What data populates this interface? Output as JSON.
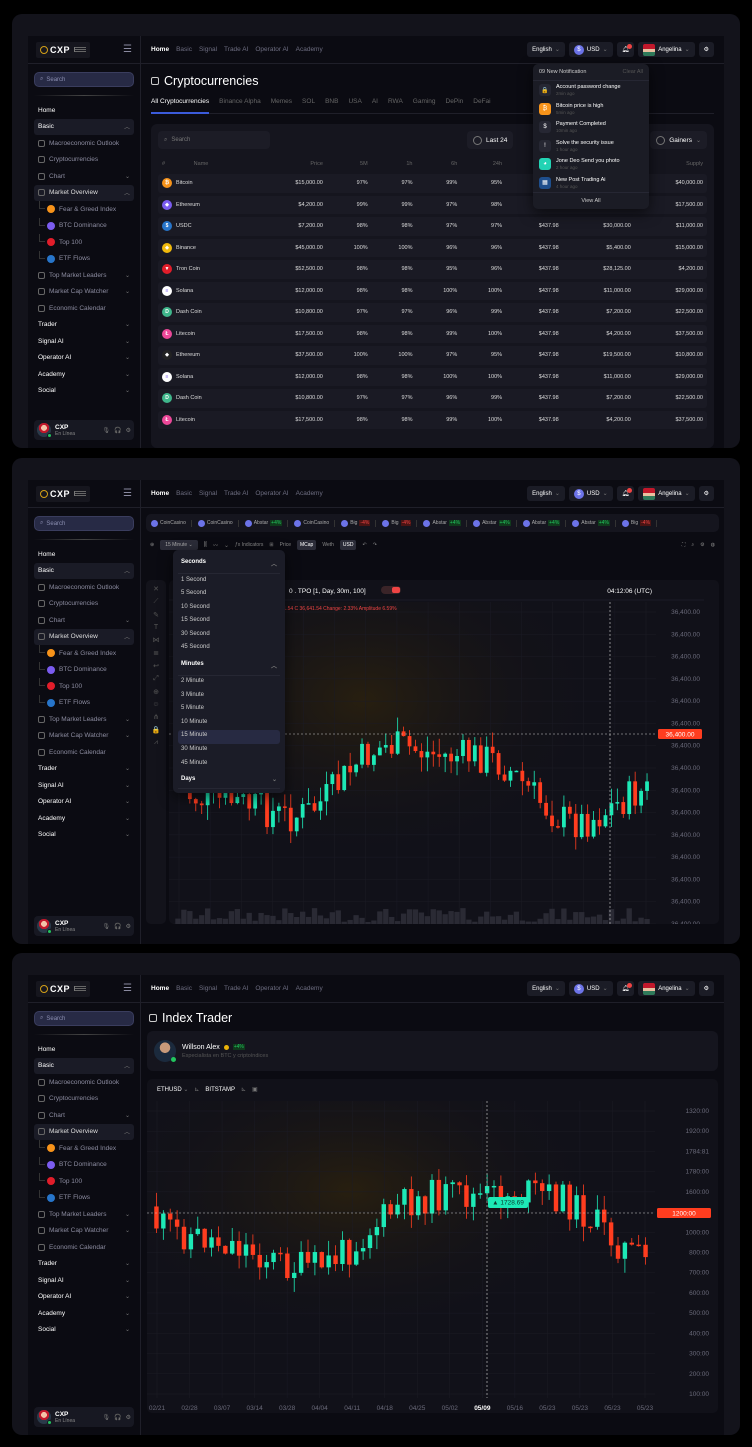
{
  "brand": {
    "name": "CXP"
  },
  "topnav": [
    "Home",
    "Basic",
    "Signal",
    "Trade AI",
    "Operator AI",
    "Academy"
  ],
  "header": {
    "language": "English",
    "currency": "USD",
    "user": "Angelina"
  },
  "search": {
    "placeholder": "Search"
  },
  "sidebar": {
    "items": [
      {
        "label": "Home",
        "type": "top"
      },
      {
        "label": "Basic",
        "type": "group",
        "open": true
      },
      {
        "label": "Macroeconomic Outlook",
        "type": "sub"
      },
      {
        "label": "Cryptocurrencies",
        "type": "sub"
      },
      {
        "label": "Chart",
        "type": "sub",
        "chev": true
      },
      {
        "label": "Market Overview",
        "type": "sub-active",
        "open": true
      },
      {
        "label": "Fear & Greed Index",
        "type": "child",
        "color": "#f7931a"
      },
      {
        "label": "BTC Dominance",
        "type": "child",
        "color": "#7b5cf0"
      },
      {
        "label": "Top 100",
        "type": "child",
        "color": "#e11d2a"
      },
      {
        "label": "ETF Flows",
        "type": "child",
        "color": "#2775ca"
      },
      {
        "label": "Top Market Leaders",
        "type": "sub",
        "chev": true
      },
      {
        "label": "Market Cap Watcher",
        "type": "sub",
        "chev": true
      },
      {
        "label": "Economic Calendar",
        "type": "sub"
      },
      {
        "label": "Trader",
        "type": "top",
        "chev": true
      },
      {
        "label": "Signal AI",
        "type": "top",
        "chev": true
      },
      {
        "label": "Operator AI",
        "type": "top",
        "chev": true
      },
      {
        "label": "Academy",
        "type": "top",
        "chev": true
      },
      {
        "label": "Social",
        "type": "top",
        "chev": true
      }
    ],
    "user": {
      "name": "CXP",
      "status": "En Línea"
    }
  },
  "crypto": {
    "title": "Cryptocurrencies",
    "tabs": [
      "All Cryptocurrencies",
      "Binance Alpha",
      "Memes",
      "SOL",
      "BNB",
      "USA",
      "AI",
      "RWA",
      "Gaming",
      "DePin",
      "DeFai"
    ],
    "search_placeholder": "Search",
    "filters": {
      "period": "Last 24",
      "sort": "Gainers"
    },
    "columns": [
      "#",
      "Name",
      "Price",
      "5M",
      "1h",
      "6h",
      "24h",
      "",
      "",
      "Supply"
    ],
    "rows": [
      {
        "name": "Bitcoin",
        "color": "#f7931a",
        "glyph": "₿",
        "price": "$15,000.00",
        "m5": "97%",
        "h1": "97%",
        "h6": "99%",
        "h24": "95%",
        "vol": "",
        "cap": "",
        "supply": "$40,000.00"
      },
      {
        "name": "Ethereum",
        "color": "#7b5cf0",
        "glyph": "◆",
        "price": "$4,200.00",
        "m5": "99%",
        "h1": "99%",
        "h6": "97%",
        "h24": "98%",
        "vol": "",
        "cap": "",
        "supply": "$17,500.00"
      },
      {
        "name": "USDC",
        "color": "#2775ca",
        "glyph": "$",
        "price": "$7,200.00",
        "m5": "98%",
        "h1": "98%",
        "h6": "97%",
        "h24": "97%",
        "vol": "$437.98",
        "cap": "$30,000.00",
        "supply": "$11,000.00"
      },
      {
        "name": "Binance",
        "color": "#f0b90b",
        "glyph": "◈",
        "price": "$45,000.00",
        "m5": "100%",
        "h1": "100%",
        "h6": "96%",
        "h24": "96%",
        "vol": "$437.98",
        "cap": "$5,400.00",
        "supply": "$15,000.00"
      },
      {
        "name": "Tron Coin",
        "color": "#e11d2a",
        "glyph": "▼",
        "price": "$52,500.00",
        "m5": "98%",
        "h1": "98%",
        "h6": "95%",
        "h24": "96%",
        "vol": "$437.98",
        "cap": "$28,125.00",
        "supply": "$4,200.00"
      },
      {
        "name": "Solana",
        "color": "#ffffff",
        "glyph": "≡",
        "price": "$12,000.00",
        "m5": "98%",
        "h1": "98%",
        "h6": "100%",
        "h24": "100%",
        "vol": "$437.98",
        "cap": "$11,000.00",
        "supply": "$29,000.00"
      },
      {
        "name": "Dash Coin",
        "color": "#3fb68b",
        "glyph": "D",
        "price": "$10,800.00",
        "m5": "97%",
        "h1": "97%",
        "h6": "96%",
        "h24": "99%",
        "vol": "$437.98",
        "cap": "$7,200.00",
        "supply": "$22,500.00"
      },
      {
        "name": "Litecoin",
        "color": "#ec4899",
        "glyph": "Ł",
        "price": "$17,500.00",
        "m5": "98%",
        "h1": "98%",
        "h6": "99%",
        "h24": "100%",
        "vol": "$437.98",
        "cap": "$4,200.00",
        "supply": "$37,500.00"
      },
      {
        "name": "Ethereum",
        "color": "#222222",
        "glyph": "◆",
        "price": "$37,500.00",
        "m5": "100%",
        "h1": "100%",
        "h6": "97%",
        "h24": "95%",
        "vol": "$437.98",
        "cap": "$19,500.00",
        "supply": "$10,800.00"
      },
      {
        "name": "Solana",
        "color": "#ffffff",
        "glyph": "≡",
        "price": "$12,000.00",
        "m5": "98%",
        "h1": "98%",
        "h6": "100%",
        "h24": "100%",
        "vol": "$437.98",
        "cap": "$11,000.00",
        "supply": "$29,000.00"
      },
      {
        "name": "Dash Coin",
        "color": "#3fb68b",
        "glyph": "D",
        "price": "$10,800.00",
        "m5": "97%",
        "h1": "97%",
        "h6": "96%",
        "h24": "99%",
        "vol": "$437.98",
        "cap": "$7,200.00",
        "supply": "$22,500.00"
      },
      {
        "name": "Litecoin",
        "color": "#ec4899",
        "glyph": "Ł",
        "price": "$17,500.00",
        "m5": "98%",
        "h1": "98%",
        "h6": "99%",
        "h24": "100%",
        "vol": "$437.98",
        "cap": "$4,200.00",
        "supply": "$37,500.00"
      }
    ]
  },
  "notifications": {
    "header": "09 New Notification",
    "clear": "Clear All",
    "view_all": "View All",
    "items": [
      {
        "title": "Account password change",
        "time": "2min ago",
        "icon": "lock-icon",
        "bg": "#262733",
        "glyph": "🔒"
      },
      {
        "title": "Bitcoin price is high",
        "time": "5min ago",
        "icon": "bitcoin-icon",
        "bg": "#f7931a",
        "glyph": "₿"
      },
      {
        "title": "Payment Completed",
        "time": "10min ago",
        "icon": "usd-coin-icon",
        "bg": "#262733",
        "glyph": "$"
      },
      {
        "title": "Solve the security issue",
        "time": "1 hour ago",
        "icon": "alert-icon",
        "bg": "#262733",
        "glyph": "!"
      },
      {
        "title": "Jone Deo Send you photo",
        "time": "2 hour ago",
        "icon": "photo-icon",
        "bg": "#22d3b4",
        "glyph": "◕"
      },
      {
        "title": "New Post Trading Ai",
        "time": "4 hour ago",
        "icon": "post-icon",
        "bg": "#1e4e8c",
        "glyph": "▦"
      }
    ]
  },
  "ticker": [
    {
      "name": "CoinCasino",
      "chg": ""
    },
    {
      "name": "CoinCasino",
      "chg": ""
    },
    {
      "name": "Abstar",
      "chg": "+4%",
      "dir": "up"
    },
    {
      "name": "CoinCasino",
      "chg": ""
    },
    {
      "name": "Big",
      "chg": "-4%",
      "dir": "dn"
    },
    {
      "name": "Big",
      "chg": "-4%",
      "dir": "dn"
    },
    {
      "name": "Abstar",
      "chg": "+4%",
      "dir": "up"
    },
    {
      "name": "Abstar",
      "chg": "+4%",
      "dir": "up"
    },
    {
      "name": "Abstar",
      "chg": "+4%",
      "dir": "up"
    },
    {
      "name": "Abstar",
      "chg": "+4%",
      "dir": "up"
    },
    {
      "name": "Big",
      "chg": "-4%",
      "dir": "dn"
    }
  ],
  "chart_toolbar": {
    "interval": "15 Minute",
    "indicators": "Indicators",
    "price": "Price",
    "mcap": "MCap",
    "weth": "Weth",
    "usd": "USD"
  },
  "chart1": {
    "legend": "0 . TPO [1, Day, 30m, 100]",
    "time": "04:12:06 (UTC)",
    "ohlc": "11.54   C 36,641.54   Change: 2.33%   Amplitude 6.59%",
    "price_tag": "36,400.00",
    "y_labels": [
      "36,400.00",
      "36,400.00",
      "36,400.00",
      "36,400.00",
      "36,400.00",
      "36,400.00",
      "36,400.00",
      "36,400.00",
      "36,400.00",
      "36,400.00",
      "36,400.00",
      "36,400.00",
      "36,400.00",
      "36,400.00",
      "36,400.00"
    ],
    "x_labels": [
      "02/21",
      "02/28",
      "03/07",
      "03/14",
      "03/28",
      "04/04",
      "04/11",
      "04/18",
      "04/25",
      "05/02",
      "05/09",
      "05/16",
      "05/23",
      "05/23",
      "05/23",
      "05/23"
    ],
    "x_highlight": 13
  },
  "timeframe_menu": {
    "groups": [
      {
        "label": "Seconds",
        "open": true,
        "options": [
          "1 Second",
          "5 Second",
          "10 Second",
          "15 Second",
          "30 Second",
          "45 Second"
        ]
      },
      {
        "label": "Minutes",
        "open": true,
        "options": [
          "2 Minute",
          "3 Minute",
          "5 Minute",
          "10 Minute",
          "15 Minute",
          "30 Minute",
          "45 Minute"
        ]
      },
      {
        "label": "Days",
        "open": false,
        "options": []
      }
    ],
    "selected": "15 Minute"
  },
  "index_trader": {
    "title": "Index Trader",
    "trader": {
      "name": "Willson Alex",
      "change": "+4%",
      "desc": "Especialista en BTC  y criptoíndices"
    },
    "symbol": "ETHUSD",
    "exchange": "BITSTAMP",
    "crosshair_value": "1728.69",
    "price_tag": "1200:00",
    "y_labels": [
      "1320:00",
      "1920:00",
      "1784:81",
      "1780:00",
      "1600:00",
      "1200:00",
      "1000:00",
      "800:00",
      "700:00",
      "600:00",
      "500:00",
      "400:00",
      "300:00",
      "200:00",
      "100:00"
    ],
    "x_labels": [
      "02/21",
      "02/28",
      "03/07",
      "03/14",
      "03/28",
      "04/04",
      "04/11",
      "04/18",
      "04/25",
      "05/02",
      "05/09",
      "05/16",
      "05/23",
      "05/23",
      "05/23",
      "05/23"
    ],
    "x_highlight": 10
  },
  "chart_data": [
    {
      "type": "candlestick",
      "title": "TPO [1, Day, 30m, 100]",
      "y_axis_labels": "36,400.00 (all ticks)",
      "x": [
        "02/21",
        "02/28",
        "03/07",
        "03/14",
        "03/28",
        "04/04",
        "04/11",
        "04/18",
        "04/25",
        "05/02",
        "05/09",
        "05/16",
        "05/23",
        "05/23",
        "05/23",
        "05/23"
      ],
      "last_price": 36400.0,
      "colors": {
        "up": "#1de9b6",
        "down": "#ff3d1f"
      },
      "volume": true
    },
    {
      "type": "candlestick",
      "title": "ETHUSD BITSTAMP",
      "y_ticks": [
        1320,
        1920,
        1784.81,
        1780,
        1600,
        1200,
        1000,
        800,
        700,
        600,
        500,
        400,
        300,
        200,
        100
      ],
      "x": [
        "02/21",
        "02/28",
        "03/07",
        "03/14",
        "03/28",
        "04/04",
        "04/11",
        "04/18",
        "04/25",
        "05/02",
        "05/09",
        "05/16",
        "05/23",
        "05/23",
        "05/23",
        "05/23"
      ],
      "last_price": 1200.0,
      "crosshair": 1728.69,
      "colors": {
        "up": "#1de9b6",
        "down": "#ff3d1f"
      }
    }
  ],
  "colors": {
    "up": "#1de9b6",
    "down": "#ff3d1f",
    "accent": "#3b5bdb",
    "bg": "#0b0b12"
  }
}
